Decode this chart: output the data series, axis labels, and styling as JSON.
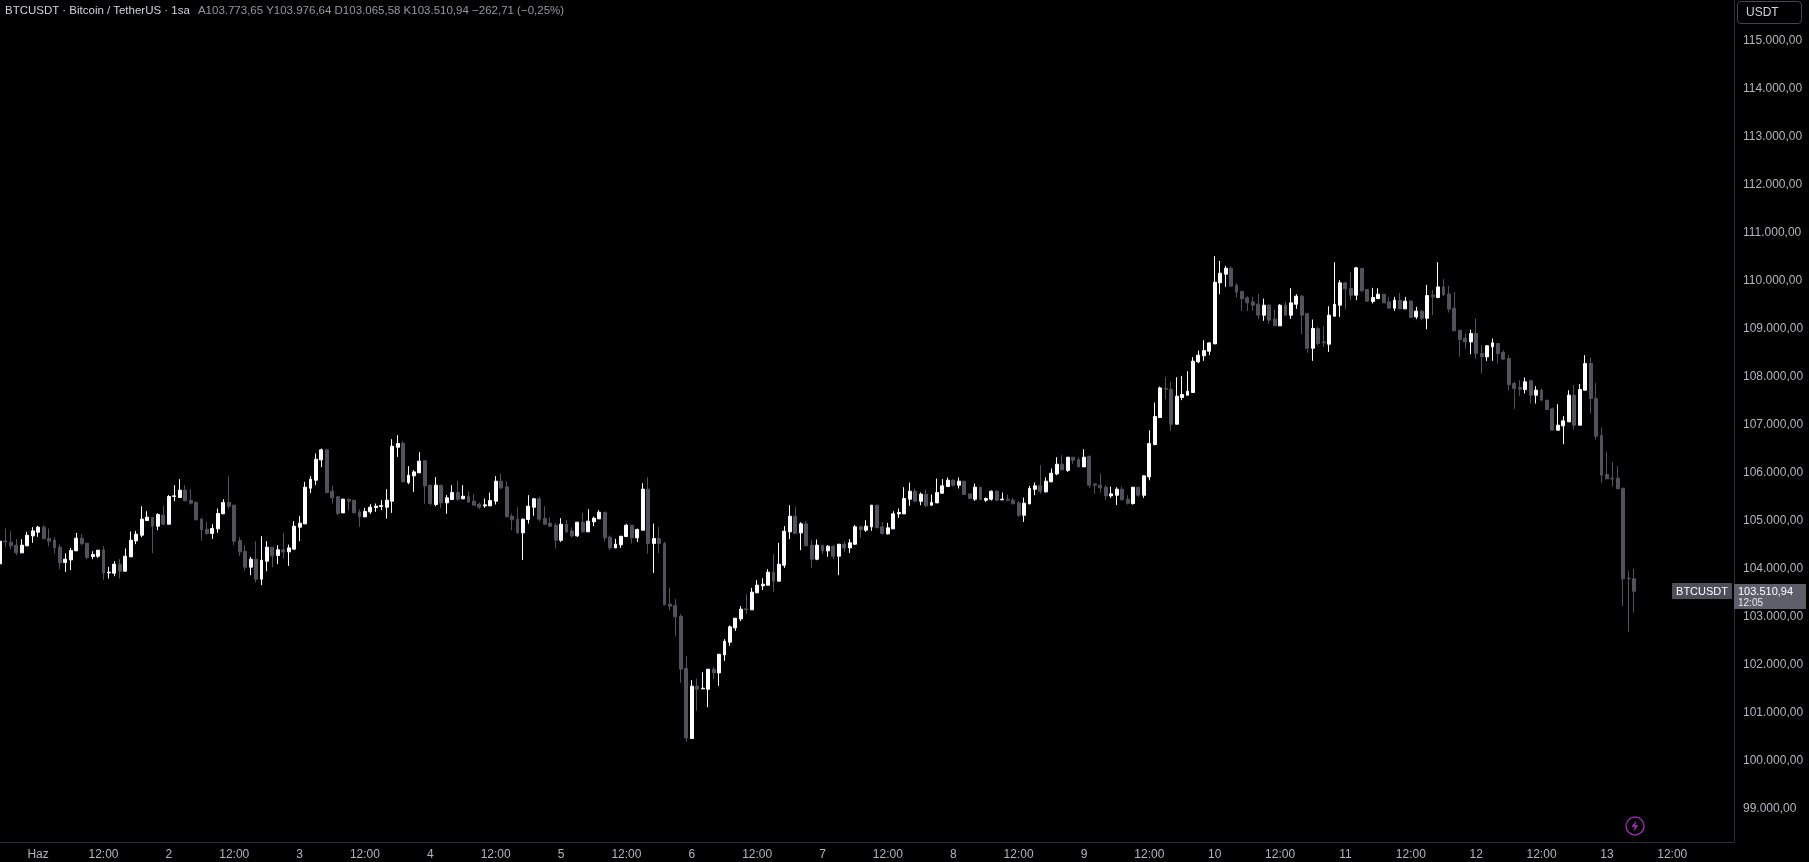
{
  "chart_data": {
    "type": "candlestick",
    "title": "BTCUSDT · Bitcoin / TetherUS · 1sa",
    "subtitle": "A103.773,65 Y103.976,64 D103.065,58 K103.510,94 −262,71 (−0,25%)",
    "ylabel": "USDT",
    "annotations": [
      "BTCUSDT",
      "103.510,94",
      "12:05"
    ],
    "x": [
      "--05-31T17:00",
      "--05-31T18:00",
      "--05-31T19:00",
      "--05-31T20:00",
      "--05-31T21:00",
      "--05-31T22:00",
      "--05-31T23:00",
      "--06-01T00:00",
      "--06-01T01:00",
      "--06-01T02:00",
      "--06-01T03:00",
      "--06-01T04:00",
      "--06-01T05:00",
      "--06-01T06:00",
      "--06-01T07:00",
      "--06-01T08:00",
      "--06-01T09:00",
      "--06-01T10:00",
      "--06-01T11:00",
      "--06-01T12:00",
      "--06-01T13:00",
      "--06-01T14:00",
      "--06-01T15:00",
      "--06-01T16:00",
      "--06-01T17:00",
      "--06-01T18:00",
      "--06-01T19:00",
      "--06-01T20:00",
      "--06-01T21:00",
      "--06-01T22:00",
      "--06-01T23:00",
      "--06-02T00:00",
      "--06-02T01:00",
      "--06-02T02:00",
      "--06-02T03:00",
      "--06-02T04:00",
      "--06-02T05:00",
      "--06-02T06:00",
      "--06-02T07:00",
      "--06-02T08:00",
      "--06-02T09:00",
      "--06-02T10:00",
      "--06-02T11:00",
      "--06-02T12:00",
      "--06-02T13:00",
      "--06-02T14:00",
      "--06-02T15:00",
      "--06-02T16:00",
      "--06-02T17:00",
      "--06-02T18:00",
      "--06-02T19:00",
      "--06-02T20:00",
      "--06-02T21:00",
      "--06-02T22:00",
      "--06-02T23:00",
      "--06-03T00:00",
      "--06-03T01:00",
      "--06-03T02:00",
      "--06-03T03:00",
      "--06-03T04:00",
      "--06-03T05:00",
      "--06-03T06:00",
      "--06-03T07:00",
      "--06-03T08:00",
      "--06-03T09:00",
      "--06-03T10:00",
      "--06-03T11:00",
      "--06-03T12:00",
      "--06-03T13:00",
      "--06-03T14:00",
      "--06-03T15:00",
      "--06-03T16:00",
      "--06-03T17:00",
      "--06-03T18:00",
      "--06-03T19:00",
      "--06-03T20:00",
      "--06-03T21:00",
      "--06-03T22:00",
      "--06-03T23:00",
      "--06-04T00:00",
      "--06-04T01:00",
      "--06-04T02:00",
      "--06-04T03:00",
      "--06-04T04:00",
      "--06-04T05:00",
      "--06-04T06:00",
      "--06-04T07:00",
      "--06-04T08:00",
      "--06-04T09:00",
      "--06-04T10:00",
      "--06-04T11:00",
      "--06-04T12:00",
      "--06-04T13:00",
      "--06-04T14:00",
      "--06-04T15:00",
      "--06-04T16:00",
      "--06-04T17:00",
      "--06-04T18:00",
      "--06-04T19:00",
      "--06-04T20:00",
      "--06-04T21:00",
      "--06-04T22:00",
      "--06-04T23:00",
      "--06-05T00:00",
      "--06-05T01:00",
      "--06-05T02:00",
      "--06-05T03:00",
      "--06-05T04:00",
      "--06-05T05:00",
      "--06-05T06:00",
      "--06-05T07:00",
      "--06-05T08:00",
      "--06-05T09:00",
      "--06-05T10:00",
      "--06-05T11:00",
      "--06-05T12:00",
      "--06-05T13:00",
      "--06-05T14:00",
      "--06-05T15:00",
      "--06-05T16:00",
      "--06-05T17:00",
      "--06-05T18:00",
      "--06-05T19:00",
      "--06-05T20:00",
      "--06-05T21:00",
      "--06-05T22:00",
      "--06-05T23:00",
      "--06-06T00:00",
      "--06-06T01:00",
      "--06-06T02:00",
      "--06-06T03:00",
      "--06-06T04:00",
      "--06-06T05:00",
      "--06-06T06:00",
      "--06-06T07:00",
      "--06-06T08:00",
      "--06-06T09:00",
      "--06-06T10:00",
      "--06-06T11:00",
      "--06-06T12:00",
      "--06-06T13:00",
      "--06-06T14:00",
      "--06-06T15:00",
      "--06-06T16:00",
      "--06-06T17:00",
      "--06-06T18:00",
      "--06-06T19:00",
      "--06-06T20:00",
      "--06-06T21:00",
      "--06-06T22:00",
      "--06-06T23:00",
      "--06-07T00:00",
      "--06-07T01:00",
      "--06-07T02:00",
      "--06-07T03:00",
      "--06-07T04:00",
      "--06-07T05:00",
      "--06-07T06:00",
      "--06-07T07:00",
      "--06-07T08:00",
      "--06-07T09:00",
      "--06-07T10:00",
      "--06-07T11:00",
      "--06-07T12:00",
      "--06-07T13:00",
      "--06-07T14:00",
      "--06-07T15:00",
      "--06-07T16:00",
      "--06-07T17:00",
      "--06-07T18:00",
      "--06-07T19:00",
      "--06-07T20:00",
      "--06-07T21:00",
      "--06-07T22:00",
      "--06-07T23:00",
      "--06-08T00:00",
      "--06-08T01:00",
      "--06-08T02:00",
      "--06-08T03:00",
      "--06-08T04:00",
      "--06-08T05:00",
      "--06-08T06:00",
      "--06-08T07:00",
      "--06-08T08:00",
      "--06-08T09:00",
      "--06-08T10:00",
      "--06-08T11:00",
      "--06-08T12:00",
      "--06-08T13:00",
      "--06-08T14:00",
      "--06-08T15:00",
      "--06-08T16:00",
      "--06-08T17:00",
      "--06-08T18:00",
      "--06-08T19:00",
      "--06-08T20:00",
      "--06-08T21:00",
      "--06-08T22:00",
      "--06-08T23:00",
      "--06-09T00:00",
      "--06-09T01:00",
      "--06-09T02:00",
      "--06-09T03:00",
      "--06-09T04:00",
      "--06-09T05:00",
      "--06-09T06:00",
      "--06-09T07:00",
      "--06-09T08:00",
      "--06-09T09:00",
      "--06-09T10:00",
      "--06-09T11:00",
      "--06-09T12:00",
      "--06-09T13:00",
      "--06-09T14:00",
      "--06-09T15:00",
      "--06-09T16:00",
      "--06-09T17:00",
      "--06-09T18:00",
      "--06-09T19:00",
      "--06-09T20:00",
      "--06-09T21:00",
      "--06-09T22:00",
      "--06-09T23:00",
      "--06-10T00:00",
      "--06-10T01:00",
      "--06-10T02:00",
      "--06-10T03:00",
      "--06-10T04:00",
      "--06-10T05:00",
      "--06-10T06:00",
      "--06-10T07:00",
      "--06-10T08:00",
      "--06-10T09:00",
      "--06-10T10:00",
      "--06-10T11:00",
      "--06-10T12:00",
      "--06-10T13:00",
      "--06-10T14:00",
      "--06-10T15:00",
      "--06-10T16:00",
      "--06-10T17:00",
      "--06-10T18:00",
      "--06-10T19:00",
      "--06-10T20:00",
      "--06-10T21:00",
      "--06-10T22:00",
      "--06-10T23:00",
      "--06-11T00:00",
      "--06-11T01:00",
      "--06-11T02:00",
      "--06-11T03:00",
      "--06-11T04:00",
      "--06-11T05:00",
      "--06-11T06:00",
      "--06-11T07:00",
      "--06-11T08:00",
      "--06-11T09:00",
      "--06-11T10:00",
      "--06-11T11:00",
      "--06-11T12:00",
      "--06-11T13:00",
      "--06-11T14:00",
      "--06-11T15:00",
      "--06-11T16:00",
      "--06-11T17:00",
      "--06-11T18:00",
      "--06-11T19:00",
      "--06-11T20:00",
      "--06-11T21:00",
      "--06-11T22:00",
      "--06-11T23:00",
      "--06-12T00:00",
      "--06-12T01:00",
      "--06-12T02:00",
      "--06-12T03:00",
      "--06-12T04:00",
      "--06-12T05:00",
      "--06-12T06:00",
      "--06-12T07:00",
      "--06-12T08:00",
      "--06-12T09:00",
      "--06-12T10:00",
      "--06-12T11:00",
      "--06-12T12:00",
      "--06-12T13:00",
      "--06-12T14:00",
      "--06-12T15:00",
      "--06-12T16:00",
      "--06-12T17:00",
      "--06-12T18:00",
      "--06-12T19:00",
      "--06-12T20:00",
      "--06-12T21:00",
      "--06-12T22:00",
      "--06-12T23:00",
      "--06-13T00:00",
      "--06-13T01:00",
      "--06-13T02:00",
      "--06-13T03:00",
      "--06-13T04:00",
      "--06-13T05:00"
    ],
    "ohlc": [
      [
        104084,
        104570,
        104070,
        104556
      ],
      [
        104560,
        104820,
        104438,
        104545
      ],
      [
        104535,
        104765,
        104390,
        104459
      ],
      [
        104473,
        104598,
        104258,
        104313
      ],
      [
        104313,
        104598,
        104313,
        104473
      ],
      [
        104459,
        104751,
        104459,
        104681
      ],
      [
        104667,
        104848,
        104521,
        104771
      ],
      [
        104744,
        104876,
        104646,
        104848
      ],
      [
        104848,
        104889,
        104605,
        104605
      ],
      [
        104612,
        104820,
        104452,
        104556
      ],
      [
        104577,
        104640,
        104299,
        104417
      ],
      [
        104431,
        104487,
        103973,
        104105
      ],
      [
        104112,
        104299,
        103917,
        104181
      ],
      [
        104167,
        104417,
        103952,
        104362
      ],
      [
        104355,
        104730,
        104355,
        104619
      ],
      [
        104619,
        104709,
        104473,
        104501
      ],
      [
        104515,
        104515,
        104181,
        104216
      ],
      [
        104237,
        104348,
        104181,
        104278
      ],
      [
        104244,
        104369,
        104209,
        104369
      ],
      [
        104376,
        104452,
        103751,
        103890
      ],
      [
        103897,
        104022,
        103778,
        103910
      ],
      [
        103890,
        104140,
        103827,
        104077
      ],
      [
        104077,
        104181,
        103778,
        103931
      ],
      [
        103931,
        104403,
        103931,
        104244
      ],
      [
        104230,
        104758,
        104230,
        104577
      ],
      [
        104563,
        104771,
        104494,
        104702
      ],
      [
        104681,
        105285,
        104640,
        105015
      ],
      [
        104987,
        105181,
        104973,
        105056
      ],
      [
        105049,
        105049,
        104306,
        104869
      ],
      [
        104869,
        105140,
        104785,
        105112
      ],
      [
        105098,
        105292,
        104889,
        104910
      ],
      [
        104910,
        105515,
        104910,
        105487
      ],
      [
        105487,
        105723,
        105390,
        105501
      ],
      [
        105466,
        105848,
        105466,
        105619
      ],
      [
        105619,
        105723,
        105397,
        105397
      ],
      [
        105404,
        105640,
        105320,
        105348
      ],
      [
        105362,
        105390,
        105001,
        105001
      ],
      [
        105015,
        105042,
        104563,
        104792
      ],
      [
        104806,
        104966,
        104688,
        104716
      ],
      [
        104716,
        104910,
        104605,
        104820
      ],
      [
        104813,
        105237,
        104730,
        105133
      ],
      [
        105126,
        105431,
        105126,
        105362
      ],
      [
        105362,
        105910,
        105230,
        105285
      ],
      [
        105306,
        105320,
        104473,
        104556
      ],
      [
        104570,
        104640,
        104251,
        104334
      ],
      [
        104348,
        104473,
        103945,
        104015
      ],
      [
        104015,
        104230,
        103848,
        104181
      ],
      [
        104181,
        104556,
        103695,
        103765
      ],
      [
        103765,
        104660,
        103640,
        104160
      ],
      [
        104140,
        104556,
        103931,
        104431
      ],
      [
        104431,
        104431,
        104015,
        104251
      ],
      [
        104258,
        104473,
        104084,
        104376
      ],
      [
        104376,
        104730,
        104195,
        104334
      ],
      [
        104334,
        104487,
        104042,
        104417
      ],
      [
        104390,
        104973,
        104390,
        104869
      ],
      [
        104848,
        105077,
        104556,
        104931
      ],
      [
        104917,
        105793,
        104917,
        105681
      ],
      [
        105660,
        105910,
        105556,
        105848
      ],
      [
        105827,
        106383,
        105723,
        106264
      ],
      [
        106250,
        106487,
        106098,
        106459
      ],
      [
        106459,
        106480,
        105556,
        105570
      ],
      [
        105598,
        105709,
        105341,
        105459
      ],
      [
        105480,
        105501,
        105098,
        105132
      ],
      [
        105146,
        105445,
        105146,
        105431
      ],
      [
        105424,
        105452,
        105202,
        105390
      ],
      [
        105410,
        105410,
        105146,
        105146
      ],
      [
        105160,
        105223,
        104855,
        105063
      ],
      [
        105063,
        105251,
        105063,
        105174
      ],
      [
        105167,
        105327,
        105126,
        105264
      ],
      [
        105257,
        105341,
        105167,
        105285
      ],
      [
        105278,
        105410,
        105202,
        105299
      ],
      [
        105264,
        105640,
        105028,
        105410
      ],
      [
        105390,
        106681,
        105146,
        106535
      ],
      [
        106514,
        106765,
        106313,
        106591
      ],
      [
        106598,
        106639,
        105792,
        105792
      ],
      [
        105778,
        106119,
        105744,
        105931
      ],
      [
        105917,
        106035,
        105584,
        106000
      ],
      [
        105980,
        106410,
        105980,
        106223
      ],
      [
        106230,
        106243,
        105334,
        105709
      ],
      [
        105723,
        105723,
        105306,
        105341
      ],
      [
        105320,
        105890,
        105285,
        105723
      ],
      [
        105723,
        105723,
        105251,
        105355
      ],
      [
        105355,
        105515,
        105126,
        105459
      ],
      [
        105424,
        105723,
        105424,
        105570
      ],
      [
        105570,
        105820,
        105396,
        105431
      ],
      [
        105438,
        105723,
        105438,
        105494
      ],
      [
        105494,
        105591,
        105369,
        105369
      ],
      [
        105390,
        105535,
        105306,
        105306
      ],
      [
        105327,
        105362,
        105223,
        105264
      ],
      [
        105292,
        105445,
        105251,
        105313
      ],
      [
        105292,
        105570,
        105292,
        105404
      ],
      [
        105390,
        105910,
        105320,
        105806
      ],
      [
        105806,
        105966,
        105640,
        105667
      ],
      [
        105688,
        105806,
        105063,
        105063
      ],
      [
        105077,
        105126,
        104785,
        105001
      ],
      [
        105015,
        105264,
        104709,
        104730
      ],
      [
        104730,
        105028,
        104167,
        105015
      ],
      [
        105008,
        105515,
        104924,
        105285
      ],
      [
        105264,
        105459,
        105084,
        105438
      ],
      [
        105438,
        105480,
        104973,
        105015
      ],
      [
        105028,
        105285,
        104910,
        104910
      ],
      [
        104931,
        105056,
        104855,
        104869
      ],
      [
        104889,
        104938,
        104403,
        104577
      ],
      [
        104577,
        105035,
        104542,
        104910
      ],
      [
        104910,
        105001,
        104730,
        104751
      ],
      [
        104771,
        104841,
        104633,
        104667
      ],
      [
        104667,
        104952,
        104646,
        104952
      ],
      [
        104952,
        105146,
        104730,
        104751
      ],
      [
        104751,
        105223,
        104751,
        104973
      ],
      [
        104959,
        105070,
        104869,
        105035
      ],
      [
        105021,
        105202,
        105021,
        105160
      ],
      [
        105160,
        105160,
        104556,
        104626
      ],
      [
        104640,
        104674,
        104376,
        104417
      ],
      [
        104417,
        104605,
        104417,
        104494
      ],
      [
        104480,
        104660,
        104417,
        104660
      ],
      [
        104653,
        104917,
        104653,
        104889
      ],
      [
        104889,
        104889,
        104508,
        104626
      ],
      [
        104626,
        104820,
        104542,
        104799
      ],
      [
        104785,
        105765,
        104785,
        105640
      ],
      [
        105640,
        105890,
        104299,
        104508
      ],
      [
        104508,
        104924,
        103897,
        104612
      ],
      [
        104612,
        104855,
        104313,
        104508
      ],
      [
        104508,
        104542,
        103230,
        103230
      ],
      [
        103244,
        103584,
        103119,
        103202
      ],
      [
        103216,
        103355,
        102584,
        102980
      ],
      [
        102994,
        103036,
        101605,
        101890
      ],
      [
        101904,
        102161,
        100376,
        100459
      ],
      [
        100445,
        101661,
        100445,
        101536
      ],
      [
        101536,
        101695,
        101022,
        101473
      ],
      [
        101480,
        101827,
        101480,
        101494
      ],
      [
        101473,
        101890,
        101098,
        101890
      ],
      [
        101890,
        101938,
        101681,
        101813
      ],
      [
        101813,
        102202,
        101543,
        102202
      ],
      [
        102188,
        102515,
        102063,
        102473
      ],
      [
        102452,
        102800,
        102376,
        102772
      ],
      [
        102751,
        102952,
        102688,
        102952
      ],
      [
        102938,
        103202,
        102890,
        103140
      ],
      [
        103147,
        103452,
        103036,
        103126
      ],
      [
        103126,
        103584,
        103126,
        103494
      ],
      [
        103480,
        103744,
        103480,
        103640
      ],
      [
        103626,
        103786,
        103536,
        103660
      ],
      [
        103640,
        103973,
        103640,
        103911
      ],
      [
        103911,
        104286,
        103501,
        103723
      ],
      [
        103723,
        104522,
        103723,
        104077
      ],
      [
        104056,
        104869,
        104001,
        104765
      ],
      [
        104751,
        105306,
        104598,
        105077
      ],
      [
        105077,
        105272,
        104716,
        104716
      ],
      [
        104730,
        104952,
        104369,
        104917
      ],
      [
        104917,
        104973,
        104459,
        104459
      ],
      [
        104473,
        104577,
        104001,
        104181
      ],
      [
        104181,
        104591,
        104160,
        104473
      ],
      [
        104473,
        104473,
        104286,
        104355
      ],
      [
        104355,
        104473,
        104230,
        104452
      ],
      [
        104452,
        104473,
        104181,
        104244
      ],
      [
        104244,
        104494,
        103848,
        104494
      ],
      [
        104494,
        104556,
        104334,
        104417
      ],
      [
        104417,
        104598,
        104313,
        104522
      ],
      [
        104494,
        104889,
        104473,
        104855
      ],
      [
        104855,
        104876,
        104633,
        104799
      ],
      [
        104785,
        104994,
        104751,
        104869
      ],
      [
        104855,
        105306,
        104771,
        105306
      ],
      [
        105306,
        105306,
        104834,
        104834
      ],
      [
        104855,
        104952,
        104695,
        104716
      ],
      [
        104709,
        104938,
        104695,
        104834
      ],
      [
        104813,
        105181,
        104813,
        105126
      ],
      [
        105125,
        105237,
        105042,
        105153
      ],
      [
        105125,
        105681,
        105125,
        105445
      ],
      [
        105431,
        105778,
        105292,
        105597
      ],
      [
        105597,
        105653,
        105375,
        105389
      ],
      [
        105389,
        105570,
        105306,
        105535
      ],
      [
        105535,
        105632,
        105271,
        105292
      ],
      [
        105306,
        105528,
        105306,
        105361
      ],
      [
        105354,
        105861,
        105354,
        105570
      ],
      [
        105556,
        105848,
        105556,
        105709
      ],
      [
        105695,
        105883,
        105695,
        105827
      ],
      [
        105827,
        105848,
        105695,
        105722
      ],
      [
        105722,
        105883,
        105653,
        105806
      ],
      [
        105806,
        105806,
        105528,
        105528
      ],
      [
        105542,
        105542,
        105445,
        105445
      ],
      [
        105431,
        105757,
        105396,
        105681
      ],
      [
        105681,
        105681,
        105424,
        105424
      ],
      [
        105410,
        105465,
        105375,
        105445
      ],
      [
        105431,
        105611,
        105403,
        105597
      ],
      [
        105597,
        105625,
        105389,
        105410
      ],
      [
        105417,
        105570,
        105417,
        105431
      ],
      [
        105431,
        105528,
        105389,
        105410
      ],
      [
        105410,
        105459,
        105334,
        105334
      ],
      [
        105354,
        105389,
        105063,
        105097
      ],
      [
        105097,
        105465,
        104958,
        105347
      ],
      [
        105333,
        105709,
        105333,
        105653
      ],
      [
        105639,
        105778,
        105514,
        105709
      ],
      [
        105709,
        106139,
        105549,
        105597
      ],
      [
        105584,
        105883,
        105570,
        105806
      ],
      [
        105792,
        106070,
        105792,
        105972
      ],
      [
        105958,
        106306,
        105931,
        106160
      ],
      [
        106160,
        106347,
        106042,
        106042
      ],
      [
        106028,
        106306,
        106000,
        106306
      ],
      [
        106306,
        106306,
        106167,
        106243
      ],
      [
        106257,
        106306,
        106104,
        106104
      ],
      [
        106104,
        106472,
        106104,
        106306
      ],
      [
        106319,
        106347,
        105667,
        105722
      ],
      [
        105750,
        105764,
        105542,
        105722
      ],
      [
        105722,
        105958,
        105570,
        105667
      ],
      [
        105681,
        105722,
        105417,
        105500
      ],
      [
        105500,
        105695,
        105458,
        105542
      ],
      [
        105514,
        105681,
        105306,
        105639
      ],
      [
        105639,
        105695,
        105417,
        105417
      ],
      [
        105431,
        105514,
        105319,
        105347
      ],
      [
        105340,
        105681,
        105319,
        105681
      ],
      [
        105681,
        105681,
        105486,
        105514
      ],
      [
        105514,
        105931,
        105458,
        105917
      ],
      [
        105896,
        106868,
        105826,
        106590
      ],
      [
        106569,
        107444,
        106556,
        107153
      ],
      [
        107132,
        107778,
        107132,
        107750
      ],
      [
        107736,
        107972,
        107514,
        107722
      ],
      [
        107722,
        107875,
        106854,
        106993
      ],
      [
        106993,
        107972,
        106993,
        107576
      ],
      [
        107549,
        108000,
        107493,
        107611
      ],
      [
        107597,
        108097,
        107597,
        107680
      ],
      [
        107653,
        108389,
        107653,
        108306
      ],
      [
        108292,
        108528,
        108264,
        108431
      ],
      [
        108417,
        108743,
        108313,
        108528
      ],
      [
        108514,
        108701,
        108431,
        108687
      ],
      [
        108666,
        110493,
        108666,
        109951
      ],
      [
        109938,
        110396,
        109701,
        110139
      ],
      [
        110118,
        110292,
        109854,
        110243
      ],
      [
        110243,
        110285,
        109868,
        109868
      ],
      [
        109889,
        109924,
        109632,
        109743
      ],
      [
        109757,
        109771,
        109354,
        109604
      ],
      [
        109625,
        109660,
        109347,
        109521
      ],
      [
        109542,
        109646,
        109354,
        109472
      ],
      [
        109493,
        109701,
        109181,
        109264
      ],
      [
        109264,
        109611,
        109146,
        109472
      ],
      [
        109472,
        109493,
        109083,
        109160
      ],
      [
        109181,
        109382,
        109042,
        109042
      ],
      [
        109042,
        109493,
        109042,
        109472
      ],
      [
        109472,
        109542,
        109250,
        109264
      ],
      [
        109264,
        109826,
        109188,
        109521
      ],
      [
        109493,
        109701,
        109396,
        109660
      ],
      [
        109660,
        109688,
        108868,
        109264
      ],
      [
        109299,
        109313,
        108479,
        108576
      ],
      [
        108576,
        109174,
        108313,
        108986
      ],
      [
        108986,
        109021,
        108639,
        108674
      ],
      [
        108708,
        109035,
        108604,
        108688
      ],
      [
        108660,
        109451,
        108500,
        109264
      ],
      [
        109243,
        110368,
        109243,
        109493
      ],
      [
        109472,
        109993,
        109229,
        109938
      ],
      [
        109938,
        109958,
        109389,
        109813
      ],
      [
        109820,
        110160,
        109576,
        109681
      ],
      [
        109681,
        110271,
        109576,
        110250
      ],
      [
        110236,
        110250,
        109757,
        109771
      ],
      [
        109799,
        109799,
        109542,
        109556
      ],
      [
        109549,
        109833,
        109507,
        109632
      ],
      [
        109611,
        109826,
        109597,
        109701
      ],
      [
        109701,
        109701,
        109521,
        109521
      ],
      [
        109542,
        109646,
        109410,
        109410
      ],
      [
        109410,
        109646,
        109354,
        109576
      ],
      [
        109576,
        109729,
        109396,
        109396
      ],
      [
        109396,
        109646,
        109396,
        109556
      ],
      [
        109556,
        109576,
        109215,
        109215
      ],
      [
        109229,
        109438,
        109181,
        109347
      ],
      [
        109347,
        109368,
        109160,
        109201
      ],
      [
        109201,
        109896,
        108972,
        109674
      ],
      [
        109681,
        109785,
        109264,
        109646
      ],
      [
        109632,
        110368,
        109618,
        109854
      ],
      [
        109854,
        110014,
        109660,
        109688
      ],
      [
        109708,
        109875,
        109320,
        109389
      ],
      [
        109410,
        109743,
        108937,
        108937
      ],
      [
        108951,
        108951,
        108396,
        108757
      ],
      [
        108785,
        108882,
        108563,
        108708
      ],
      [
        108708,
        108965,
        108451,
        108882
      ],
      [
        108882,
        109194,
        108354,
        108466
      ],
      [
        108466,
        108640,
        108049,
        108396
      ],
      [
        108396,
        108640,
        108313,
        108626
      ],
      [
        108605,
        108778,
        108313,
        108688
      ],
      [
        108674,
        108688,
        108258,
        108466
      ],
      [
        108487,
        108535,
        108348,
        108348
      ],
      [
        108362,
        108431,
        107702,
        107820
      ],
      [
        107841,
        107876,
        107313,
        107737
      ],
      [
        107758,
        107910,
        107584,
        107723
      ],
      [
        107716,
        107966,
        107633,
        107876
      ],
      [
        107897,
        107924,
        107424,
        107598
      ],
      [
        107598,
        107785,
        107424,
        107702
      ],
      [
        107702,
        107737,
        107480,
        107494
      ],
      [
        107494,
        107494,
        107299,
        107299
      ],
      [
        107313,
        107341,
        106869,
        106869
      ],
      [
        106869,
        107410,
        106869,
        106973
      ],
      [
        106959,
        107160,
        106577,
        107063
      ],
      [
        107042,
        107702,
        107042,
        107598
      ],
      [
        107598,
        107806,
        106883,
        106973
      ],
      [
        106973,
        107827,
        106973,
        107716
      ],
      [
        107702,
        108431,
        107702,
        108258
      ],
      [
        108258,
        108383,
        107216,
        107529
      ],
      [
        107529,
        107855,
        106674,
        106744
      ],
      [
        106758,
        106924,
        105772,
        105931
      ],
      [
        105945,
        106417,
        105855,
        105855
      ],
      [
        105869,
        106202,
        105702,
        105855
      ],
      [
        105869,
        106119,
        105647,
        105647
      ],
      [
        105661,
        105661,
        103202,
        103772
      ],
      [
        103786,
        103939,
        102668,
        103774
      ],
      [
        103773.65,
        103976.64,
        103065.58,
        103510.94
      ]
    ],
    "colors": [
      "#ffffff",
      "#50535e",
      "#50535e",
      "#50535e",
      "#ffffff",
      "#ffffff",
      "#ffffff",
      "#ffffff",
      "#50535e",
      "#50535e",
      "#50535e",
      "#50535e",
      "#ffffff",
      "#ffffff",
      "#ffffff",
      "#50535e",
      "#50535e",
      "#ffffff",
      "#ffffff",
      "#50535e",
      "#ffffff",
      "#ffffff",
      "#50535e",
      "#ffffff",
      "#ffffff",
      "#ffffff",
      "#ffffff",
      "#ffffff",
      "#50535e",
      "#ffffff",
      "#50535e",
      "#ffffff",
      "#ffffff",
      "#ffffff",
      "#50535e",
      "#50535e",
      "#50535e",
      "#50535e",
      "#50535e",
      "#ffffff",
      "#ffffff",
      "#ffffff",
      "#50535e",
      "#50535e",
      "#50535e",
      "#50535e",
      "#ffffff",
      "#50535e",
      "#ffffff",
      "#ffffff",
      "#50535e",
      "#ffffff",
      "#50535e",
      "#ffffff",
      "#ffffff",
      "#ffffff",
      "#ffffff",
      "#ffffff",
      "#ffffff",
      "#ffffff",
      "#50535e",
      "#50535e",
      "#50535e",
      "#ffffff",
      "#50535e",
      "#50535e",
      "#50535e",
      "#ffffff",
      "#ffffff",
      "#ffffff",
      "#ffffff",
      "#ffffff",
      "#ffffff",
      "#ffffff",
      "#50535e",
      "#ffffff",
      "#ffffff",
      "#ffffff",
      "#50535e",
      "#50535e",
      "#ffffff",
      "#50535e",
      "#ffffff",
      "#ffffff",
      "#50535e",
      "#ffffff",
      "#50535e",
      "#50535e",
      "#50535e",
      "#ffffff",
      "#ffffff",
      "#ffffff",
      "#50535e",
      "#50535e",
      "#50535e",
      "#50535e",
      "#ffffff",
      "#ffffff",
      "#ffffff",
      "#50535e",
      "#50535e",
      "#50535e",
      "#50535e",
      "#ffffff",
      "#50535e",
      "#50535e",
      "#ffffff",
      "#50535e",
      "#ffffff",
      "#ffffff",
      "#ffffff",
      "#50535e",
      "#50535e",
      "#ffffff",
      "#ffffff",
      "#ffffff",
      "#50535e",
      "#ffffff",
      "#ffffff",
      "#50535e",
      "#ffffff",
      "#50535e",
      "#50535e",
      "#50535e",
      "#50535e",
      "#50535e",
      "#50535e",
      "#ffffff",
      "#50535e",
      "#ffffff",
      "#ffffff",
      "#50535e",
      "#ffffff",
      "#ffffff",
      "#ffffff",
      "#ffffff",
      "#ffffff",
      "#50535e",
      "#ffffff",
      "#ffffff",
      "#ffffff",
      "#ffffff",
      "#50535e",
      "#ffffff",
      "#ffffff",
      "#ffffff",
      "#50535e",
      "#ffffff",
      "#50535e",
      "#50535e",
      "#ffffff",
      "#50535e",
      "#ffffff",
      "#50535e",
      "#ffffff",
      "#50535e",
      "#ffffff",
      "#ffffff",
      "#50535e",
      "#ffffff",
      "#ffffff",
      "#50535e",
      "#50535e",
      "#ffffff",
      "#ffffff",
      "#ffffff",
      "#ffffff",
      "#ffffff",
      "#50535e",
      "#ffffff",
      "#50535e",
      "#ffffff",
      "#ffffff",
      "#ffffff",
      "#ffffff",
      "#50535e",
      "#ffffff",
      "#50535e",
      "#50535e",
      "#ffffff",
      "#50535e",
      "#ffffff",
      "#ffffff",
      "#50535e",
      "#ffffff",
      "#50535e",
      "#50535e",
      "#50535e",
      "#ffffff",
      "#ffffff",
      "#ffffff",
      "#50535e",
      "#ffffff",
      "#ffffff",
      "#ffffff",
      "#50535e",
      "#ffffff",
      "#50535e",
      "#50535e",
      "#ffffff",
      "#50535e",
      "#50535e",
      "#50535e",
      "#50535e",
      "#ffffff",
      "#ffffff",
      "#50535e",
      "#50535e",
      "#ffffff",
      "#50535e",
      "#ffffff",
      "#ffffff",
      "#ffffff",
      "#ffffff",
      "#50535e",
      "#50535e",
      "#ffffff",
      "#ffffff",
      "#ffffff",
      "#ffffff",
      "#ffffff",
      "#ffffff",
      "#ffffff",
      "#ffffff",
      "#ffffff",
      "#ffffff",
      "#50535e",
      "#50535e",
      "#50535e",
      "#50535e",
      "#50535e",
      "#50535e",
      "#ffffff",
      "#50535e",
      "#50535e",
      "#ffffff",
      "#50535e",
      "#ffffff",
      "#ffffff",
      "#50535e",
      "#50535e",
      "#ffffff",
      "#50535e",
      "#50535e",
      "#ffffff",
      "#ffffff",
      "#ffffff",
      "#50535e",
      "#50535e",
      "#ffffff",
      "#50535e",
      "#50535e",
      "#ffffff",
      "#ffffff",
      "#50535e",
      "#50535e",
      "#ffffff",
      "#50535e",
      "#ffffff",
      "#50535e",
      "#ffffff",
      "#50535e",
      "#ffffff",
      "#50535e",
      "#ffffff",
      "#50535e",
      "#50535e",
      "#50535e",
      "#50535e",
      "#50535e",
      "#ffffff",
      "#50535e",
      "#50535e",
      "#ffffff",
      "#ffffff",
      "#50535e",
      "#50535e",
      "#50535e",
      "#50535e",
      "#50535e",
      "#ffffff",
      "#50535e",
      "#ffffff",
      "#50535e",
      "#50535e",
      "#50535e",
      "#ffffff",
      "#ffffff",
      "#ffffff",
      "#50535e",
      "#ffffff",
      "#ffffff",
      "#50535e",
      "#50535e",
      "#50535e",
      "#50535e",
      "#50535e",
      "#50535e",
      "#50535e",
      "#50535e",
      "#50535e"
    ],
    "xlim": [
      "--05-31T17:00",
      "--06-13T23:20"
    ],
    "xticks": [
      {
        "value": "--06-01T00:00",
        "label": "Haz"
      },
      {
        "value": "--06-01T12:00",
        "label": "12:00"
      },
      {
        "value": "--06-02T00:00",
        "label": "2"
      },
      {
        "value": "--06-02T12:00",
        "label": "12:00"
      },
      {
        "value": "--06-03T00:00",
        "label": "3"
      },
      {
        "value": "--06-03T12:00",
        "label": "12:00"
      },
      {
        "value": "--06-04T00:00",
        "label": "4"
      },
      {
        "value": "--06-04T12:00",
        "label": "12:00"
      },
      {
        "value": "--06-05T00:00",
        "label": "5"
      },
      {
        "value": "--06-05T12:00",
        "label": "12:00"
      },
      {
        "value": "--06-06T00:00",
        "label": "6"
      },
      {
        "value": "--06-06T12:00",
        "label": "12:00"
      },
      {
        "value": "--06-07T00:00",
        "label": "7"
      },
      {
        "value": "--06-07T12:00",
        "label": "12:00"
      },
      {
        "value": "--06-08T00:00",
        "label": "8"
      },
      {
        "value": "--06-08T12:00",
        "label": "12:00"
      },
      {
        "value": "--06-09T00:00",
        "label": "9"
      },
      {
        "value": "--06-09T12:00",
        "label": "12:00"
      },
      {
        "value": "--06-10T00:00",
        "label": "10"
      },
      {
        "value": "--06-10T12:00",
        "label": "12:00"
      },
      {
        "value": "--06-11T00:00",
        "label": "11"
      },
      {
        "value": "--06-11T12:00",
        "label": "12:00"
      },
      {
        "value": "--06-12T00:00",
        "label": "12"
      },
      {
        "value": "--06-12T12:00",
        "label": "12:00"
      },
      {
        "value": "--06-13T00:00",
        "label": "13"
      },
      {
        "value": "--06-13T12:00",
        "label": "12:00"
      }
    ],
    "ylim": [
      98290,
      115830
    ],
    "yticks": [
      {
        "value": 99000,
        "label": "99.000,00"
      },
      {
        "value": 100000,
        "label": "100.000,00"
      },
      {
        "value": 101000,
        "label": "101.000,00"
      },
      {
        "value": 102000,
        "label": "102.000,00"
      },
      {
        "value": 103000,
        "label": "103.000,00"
      },
      {
        "value": 104000,
        "label": "104.000,00"
      },
      {
        "value": 105000,
        "label": "105.000,00"
      },
      {
        "value": 106000,
        "label": "106.000,00"
      },
      {
        "value": 107000,
        "label": "107.000,00"
      },
      {
        "value": 108000,
        "label": "108.000,00"
      },
      {
        "value": 109000,
        "label": "109.000,00"
      },
      {
        "value": 110000,
        "label": "110.000,00"
      },
      {
        "value": 111000,
        "label": "111.000,00"
      },
      {
        "value": 112000,
        "label": "112.000,00"
      },
      {
        "value": 113000,
        "label": "113.000,00"
      },
      {
        "value": 114000,
        "label": "114.000,00"
      },
      {
        "value": 115000,
        "label": "115.000,00"
      }
    ]
  }
}
